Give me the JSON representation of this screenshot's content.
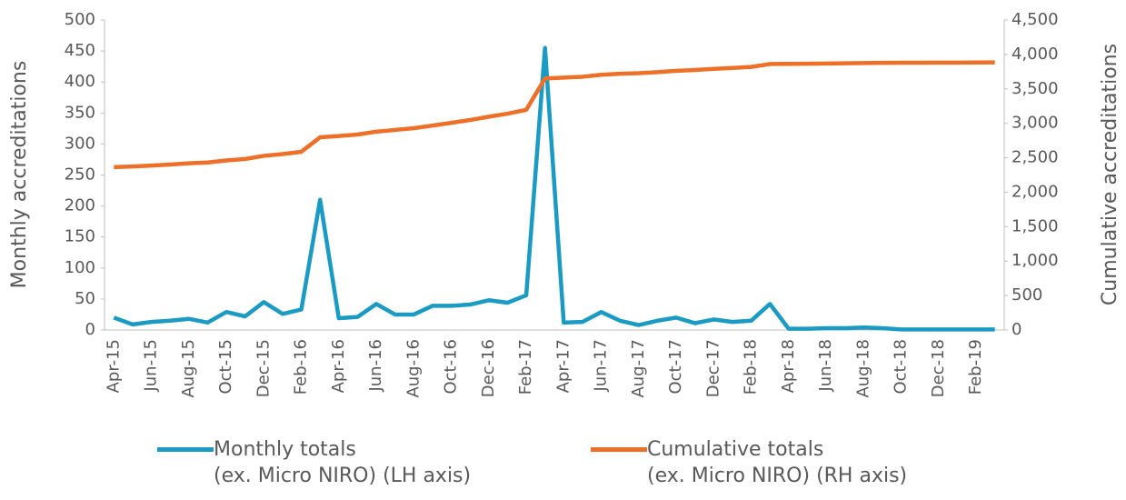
{
  "chart_data": {
    "type": "line",
    "y_label": "Monthly accreditations",
    "y2_label": "Cumulative accreditations",
    "categories": [
      "Apr-15",
      null,
      "Jun-15",
      null,
      "Aug-15",
      null,
      "Oct-15",
      null,
      "Dec-15",
      null,
      "Feb-16",
      null,
      "Apr-16",
      null,
      "Jun-16",
      null,
      "Aug-16",
      null,
      "Oct-16",
      null,
      "Dec-16",
      null,
      "Feb-17",
      null,
      "Apr-17",
      null,
      "Jun-17",
      null,
      "Aug-17",
      null,
      "Oct-17",
      null,
      "Dec-17",
      null,
      "Feb-18",
      null,
      "Apr-18",
      null,
      "Jun-18",
      null,
      "Aug-18",
      null,
      "Oct-18",
      null,
      "Dec-18",
      null,
      "Feb-19",
      null
    ],
    "series": [
      {
        "name": "Monthly totals\n(ex. Micro NIRO) (LH axis)",
        "color": "#1b9bc3",
        "axis": "y",
        "values": [
          20,
          9,
          13,
          15,
          18,
          12,
          29,
          22,
          45,
          26,
          33,
          210,
          19,
          21,
          42,
          25,
          25,
          39,
          39,
          41,
          48,
          44,
          56,
          455,
          12,
          13,
          29,
          15,
          8,
          15,
          20,
          11,
          17,
          13,
          15,
          42,
          2,
          2,
          3,
          3,
          4,
          3,
          1,
          1,
          1,
          1,
          1,
          1
        ]
      },
      {
        "name": "Cumulative totals\n(ex. Micro NIRO) (RH axis)",
        "color": "#ee7028",
        "axis": "y2",
        "values": [
          2365,
          2374,
          2387,
          2402,
          2420,
          2432,
          2461,
          2483,
          2528,
          2554,
          2587,
          2797,
          2816,
          2837,
          2879,
          2904,
          2929,
          2968,
          3007,
          3048,
          3096,
          3140,
          3196,
          3651,
          3663,
          3676,
          3705,
          3720,
          3728,
          3743,
          3763,
          3774,
          3791,
          3804,
          3819,
          3861,
          3863,
          3865,
          3868,
          3871,
          3875,
          3878,
          3879,
          3880,
          3881,
          3882,
          3883,
          3884
        ]
      }
    ],
    "ylim": [
      0,
      500
    ],
    "yticks": [
      0,
      50,
      100,
      150,
      200,
      250,
      300,
      350,
      400,
      450,
      500
    ],
    "y2lim": [
      0,
      4500
    ],
    "y2ticks": [
      0,
      500,
      {
        "value": 1000,
        "label": "1,000"
      },
      {
        "value": 1500,
        "label": "1,500"
      },
      {
        "value": 2000,
        "label": "2,000"
      },
      {
        "value": 2500,
        "label": "2,500"
      },
      {
        "value": 3000,
        "label": "3,000"
      },
      {
        "value": 3500,
        "label": "3,500"
      },
      {
        "value": 4000,
        "label": "4,000"
      },
      {
        "value": 4500,
        "label": "4,500"
      }
    ],
    "grid": false,
    "legend": "bottom"
  }
}
